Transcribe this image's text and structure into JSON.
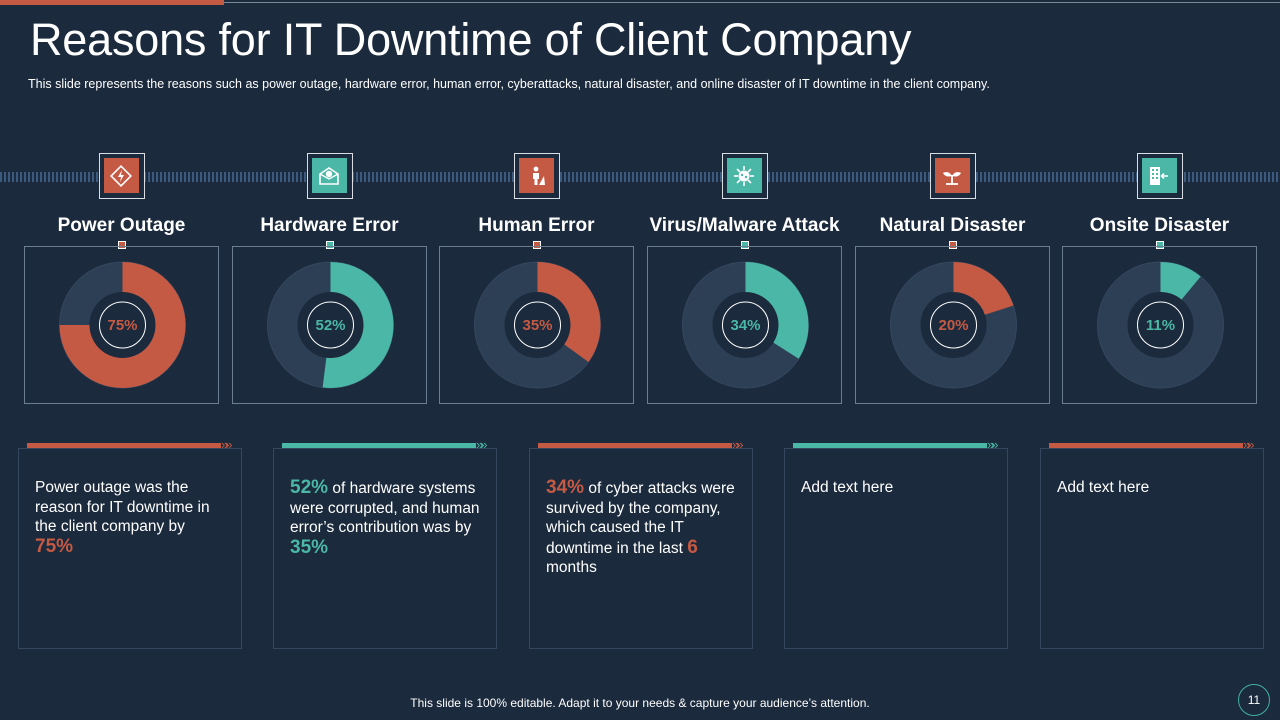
{
  "slide": {
    "title": "Reasons for IT Downtime of Client Company",
    "subtitle": "This slide represents the reasons such as power outage, hardware error, human error, cyberattacks, natural disaster, and online disaster of IT downtime in the client company.",
    "footer": "This slide is 100% editable. Adapt it to your needs & capture your audience’s attention.",
    "page_number": "11"
  },
  "colors": {
    "orange": "#c55a44",
    "teal": "#4ab7a7",
    "background": "#1b2a3c",
    "track": "#2d3f55"
  },
  "icons": [
    "power-outage-icon",
    "hardware-error-icon",
    "human-error-icon",
    "virus-icon",
    "natural-disaster-icon",
    "onsite-disaster-icon"
  ],
  "chart_data": {
    "type": "pie",
    "title": "Reasons for IT Downtime of Client Company",
    "categories": [
      "Power Outage",
      "Hardware Error",
      "Human Error",
      "Virus/Malware Attack",
      "Natural Disaster",
      "Onsite Disaster"
    ],
    "values": [
      75,
      52,
      35,
      34,
      20,
      11
    ],
    "labels": [
      "75%",
      "52%",
      "35%",
      "34%",
      "20%",
      "11%"
    ],
    "unit": "%",
    "colors": [
      "#c55a44",
      "#4ab7a7",
      "#c55a44",
      "#4ab7a7",
      "#c55a44",
      "#4ab7a7"
    ]
  },
  "cards": [
    {
      "parts": [
        {
          "text": "Power outage was the reason for IT downtime in the client company by"
        },
        {
          "text": "75%",
          "big": true
        }
      ]
    },
    {
      "parts": [
        {
          "text": "52%",
          "big": true
        },
        {
          "text": " of hardware systems were corrupted, and human error’s contribution was by "
        },
        {
          "text": "35%",
          "big": true
        }
      ]
    },
    {
      "parts": [
        {
          "text": "34%",
          "big": true
        },
        {
          "text": " of cyber attacks were survived by the company, which caused the IT downtime in the last "
        },
        {
          "text": "6",
          "big": true
        },
        {
          "text": " months"
        }
      ]
    },
    {
      "parts": [
        {
          "text": "Add text here"
        }
      ]
    },
    {
      "parts": [
        {
          "text": "Add text here"
        }
      ]
    }
  ],
  "card_bar_chevron": "»»"
}
